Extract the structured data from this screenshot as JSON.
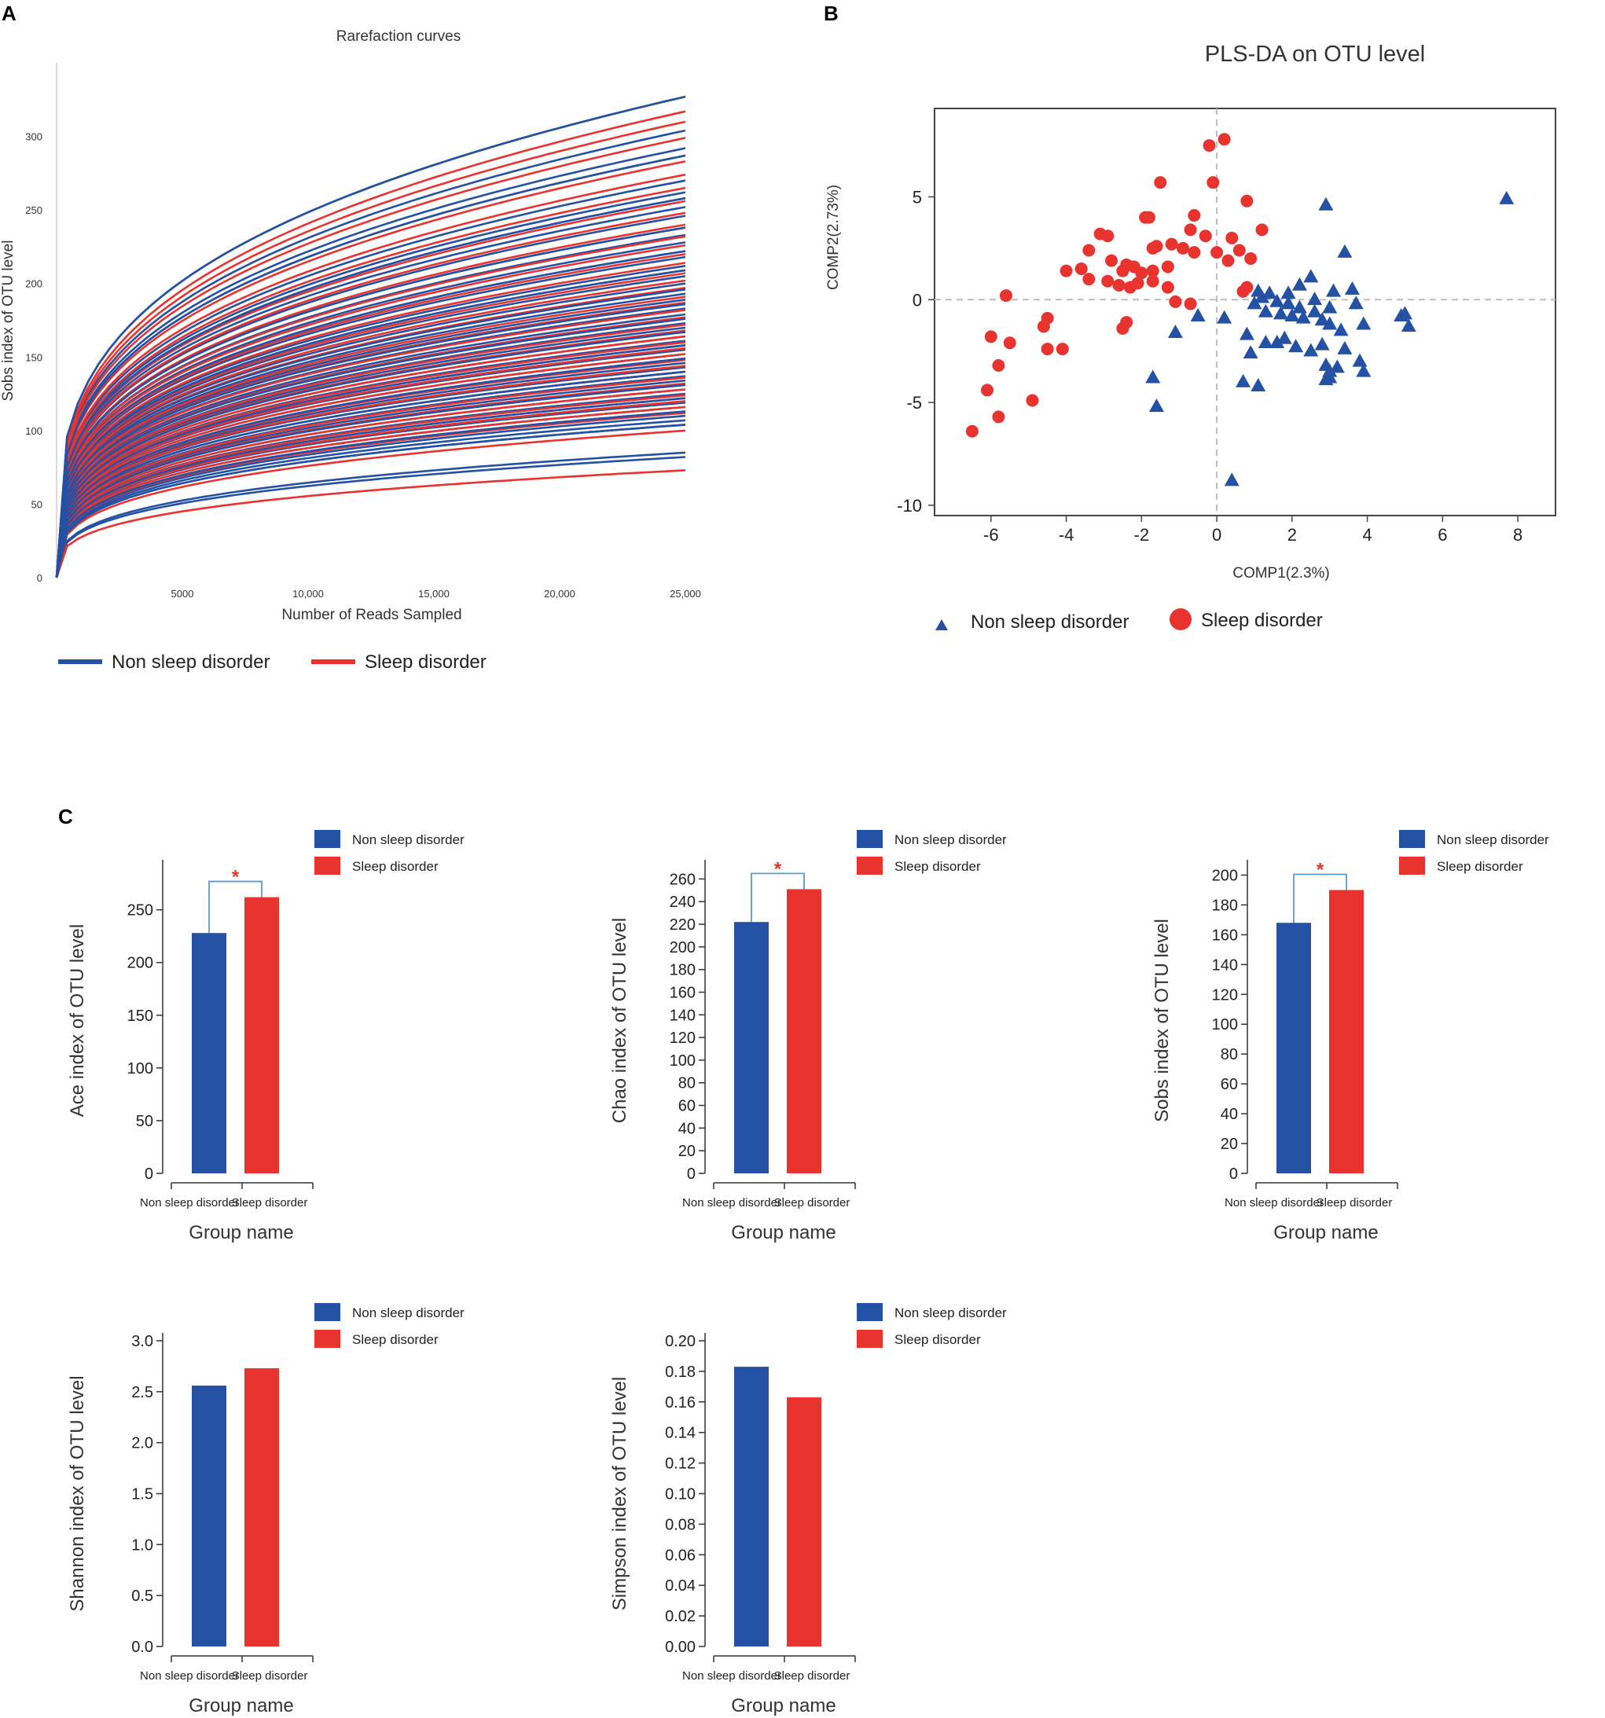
{
  "panel_labels": {
    "a": "A",
    "b": "B",
    "c": "C"
  },
  "colors": {
    "non_sleep": "#2451a3",
    "sleep": "#e8332e",
    "bracket": "#5a9bd5",
    "star": "#e8342f"
  },
  "chart_data": [
    {
      "id": "A",
      "type": "line",
      "title": "Rarefaction curves",
      "xlabel": "Number of Reads Sampled",
      "ylabel": "Sobs index of OTU level",
      "xlim": [
        0,
        25000
      ],
      "ylim": [
        0,
        350
      ],
      "xtick_labels": [
        "5000",
        "10,000",
        "15,000",
        "20,000",
        "25,000"
      ],
      "xtick_values": [
        5000,
        10000,
        15000,
        20000,
        25000
      ],
      "ytick_labels": [
        "0",
        "50",
        "100",
        "150",
        "200",
        "250",
        "300"
      ],
      "ytick_values": [
        0,
        50,
        100,
        150,
        200,
        250,
        300
      ],
      "curve_model": "y = final * (x/25000)^0.3",
      "series": [
        {
          "name": "Non sleep disorder",
          "color": "#2451a3",
          "final_values": [
            327,
            304,
            292,
            287,
            270,
            262,
            258,
            252,
            246,
            238,
            233,
            228,
            222,
            218,
            212,
            209,
            205,
            200,
            196,
            193,
            189,
            186,
            183,
            179,
            176,
            173,
            170,
            167,
            164,
            161,
            158,
            155,
            152,
            149,
            146,
            143,
            140,
            137,
            134,
            131,
            128,
            125,
            122,
            119,
            116,
            113,
            110,
            107,
            104,
            85,
            82
          ]
        },
        {
          "name": "Sleep disorder",
          "color": "#e8332e",
          "final_values": [
            317,
            310,
            299,
            283,
            274,
            265,
            256,
            248,
            240,
            232,
            226,
            220,
            214,
            207,
            202,
            197,
            191,
            187,
            182,
            177,
            172,
            168,
            164,
            160,
            156,
            152,
            148,
            144,
            140,
            136,
            132,
            128,
            124,
            120,
            116,
            112,
            100,
            73
          ]
        }
      ],
      "legend": [
        "Non sleep disorder",
        "Sleep disorder"
      ]
    },
    {
      "id": "B",
      "type": "scatter",
      "title": "PLS-DA on OTU level",
      "xlabel": "COMP1(2.3%)",
      "ylabel": "COMP2(2.73%)",
      "xlim": [
        -7.5,
        9.0
      ],
      "ylim": [
        -10.5,
        9.3
      ],
      "xtick_values": [
        -6,
        -4,
        -2,
        0,
        2,
        4,
        6,
        8
      ],
      "xtick_labels": [
        "-6",
        "-4",
        "-2",
        "0",
        "2",
        "4",
        "6",
        "8"
      ],
      "ytick_values": [
        -10,
        -5,
        0,
        5
      ],
      "ytick_labels": [
        "-10",
        "-5",
        "0",
        "5"
      ],
      "reference_lines": {
        "x": 0,
        "y": 0
      },
      "series": [
        {
          "name": "Non sleep disorder",
          "marker": "triangle",
          "color": "#2451a3",
          "points": [
            [
              7.7,
              4.9
            ],
            [
              2.9,
              4.6
            ],
            [
              3.4,
              2.3
            ],
            [
              2.5,
              1.1
            ],
            [
              3.6,
              0.5
            ],
            [
              3.1,
              0.4
            ],
            [
              2.2,
              0.7
            ],
            [
              1.4,
              0.3
            ],
            [
              1.9,
              0.3
            ],
            [
              1.1,
              0.4
            ],
            [
              1.2,
              0.1
            ],
            [
              1.6,
              -0.1
            ],
            [
              1.9,
              -0.2
            ],
            [
              2.2,
              -0.4
            ],
            [
              2.6,
              0.0
            ],
            [
              3.0,
              -0.4
            ],
            [
              3.7,
              -0.2
            ],
            [
              1.0,
              -0.2
            ],
            [
              1.3,
              -0.6
            ],
            [
              1.7,
              -0.7
            ],
            [
              2.0,
              -0.8
            ],
            [
              2.3,
              -0.9
            ],
            [
              2.6,
              -0.6
            ],
            [
              2.8,
              -1.0
            ],
            [
              3.0,
              -1.2
            ],
            [
              3.3,
              -1.5
            ],
            [
              3.9,
              -1.2
            ],
            [
              4.9,
              -0.8
            ],
            [
              5.0,
              -0.7
            ],
            [
              5.1,
              -1.3
            ],
            [
              0.2,
              -0.9
            ],
            [
              -0.5,
              -0.8
            ],
            [
              -1.1,
              -1.6
            ],
            [
              0.8,
              -1.7
            ],
            [
              1.3,
              -2.1
            ],
            [
              1.6,
              -2.1
            ],
            [
              1.8,
              -1.9
            ],
            [
              2.1,
              -2.3
            ],
            [
              2.5,
              -2.5
            ],
            [
              2.8,
              -2.2
            ],
            [
              3.4,
              -2.4
            ],
            [
              3.8,
              -3.0
            ],
            [
              2.9,
              -3.2
            ],
            [
              3.0,
              -3.5
            ],
            [
              3.2,
              -3.3
            ],
            [
              2.9,
              -3.9
            ],
            [
              3.0,
              -3.8
            ],
            [
              3.9,
              -3.5
            ],
            [
              0.9,
              -2.6
            ],
            [
              0.7,
              -4.0
            ],
            [
              1.1,
              -4.2
            ],
            [
              -1.7,
              -3.8
            ],
            [
              -1.6,
              -5.2
            ],
            [
              0.4,
              -8.8
            ]
          ]
        },
        {
          "name": "Sleep disorder",
          "marker": "circle",
          "color": "#e8332e",
          "points": [
            [
              0.2,
              7.8
            ],
            [
              -0.2,
              7.5
            ],
            [
              -0.1,
              5.7
            ],
            [
              -1.5,
              5.7
            ],
            [
              0.8,
              4.8
            ],
            [
              -0.6,
              4.1
            ],
            [
              -1.8,
              4.0
            ],
            [
              -1.9,
              4.0
            ],
            [
              -2.9,
              3.1
            ],
            [
              -3.1,
              3.2
            ],
            [
              -0.7,
              3.4
            ],
            [
              -0.3,
              3.1
            ],
            [
              0.4,
              3.0
            ],
            [
              1.2,
              3.4
            ],
            [
              -1.6,
              2.6
            ],
            [
              -1.7,
              2.5
            ],
            [
              -1.2,
              2.7
            ],
            [
              -0.9,
              2.5
            ],
            [
              -0.6,
              2.3
            ],
            [
              -3.4,
              2.4
            ],
            [
              -2.8,
              1.9
            ],
            [
              -2.4,
              1.7
            ],
            [
              -2.2,
              1.6
            ],
            [
              -2.5,
              1.4
            ],
            [
              -2.0,
              1.3
            ],
            [
              -1.7,
              1.4
            ],
            [
              -1.3,
              1.6
            ],
            [
              0.0,
              2.3
            ],
            [
              0.3,
              1.9
            ],
            [
              0.6,
              2.4
            ],
            [
              0.9,
              2.0
            ],
            [
              -4.0,
              1.4
            ],
            [
              -3.6,
              1.5
            ],
            [
              -3.4,
              1.0
            ],
            [
              -2.9,
              0.9
            ],
            [
              -2.6,
              0.7
            ],
            [
              -2.3,
              0.6
            ],
            [
              -2.1,
              0.8
            ],
            [
              -1.7,
              0.9
            ],
            [
              -1.3,
              0.6
            ],
            [
              0.8,
              0.6
            ],
            [
              0.7,
              0.4
            ],
            [
              -1.1,
              -0.1
            ],
            [
              -0.7,
              -0.2
            ],
            [
              -5.6,
              0.2
            ],
            [
              -4.5,
              -0.9
            ],
            [
              -4.6,
              -1.3
            ],
            [
              -2.4,
              -1.1
            ],
            [
              -2.5,
              -1.4
            ],
            [
              -6.0,
              -1.8
            ],
            [
              -5.5,
              -2.1
            ],
            [
              -4.5,
              -2.4
            ],
            [
              -4.1,
              -2.4
            ],
            [
              -5.8,
              -3.2
            ],
            [
              -6.1,
              -4.4
            ],
            [
              -4.9,
              -4.9
            ],
            [
              -5.8,
              -5.7
            ],
            [
              -6.5,
              -6.4
            ]
          ]
        }
      ],
      "legend": [
        "Non sleep disorder",
        "Sleep disorder"
      ]
    },
    {
      "id": "C1",
      "type": "bar",
      "ylabel": "Ace index of OTU level",
      "xlabel": "Group name",
      "categories": [
        "Non sleep disorder",
        "Sleep disorder"
      ],
      "values": [
        228,
        262
      ],
      "ylim": [
        0,
        290
      ],
      "ytick_values": [
        0,
        50,
        100,
        150,
        200,
        250
      ],
      "ytick_labels": [
        "0",
        "50",
        "100",
        "150",
        "200",
        "250"
      ],
      "significance": "*",
      "legend": [
        "Non sleep disorder",
        "Sleep disorder"
      ]
    },
    {
      "id": "C2",
      "type": "bar",
      "ylabel": "Chao index of OTU level",
      "xlabel": "Group name",
      "categories": [
        "Non sleep disorder",
        "Sleep disorder"
      ],
      "values": [
        222,
        251
      ],
      "ylim": [
        0,
        270
      ],
      "ytick_values": [
        0,
        20,
        40,
        60,
        80,
        100,
        120,
        140,
        160,
        180,
        200,
        220,
        240,
        260
      ],
      "ytick_labels": [
        "0",
        "20",
        "40",
        "60",
        "80",
        "100",
        "120",
        "140",
        "160",
        "180",
        "200",
        "220",
        "240",
        "260"
      ],
      "significance": "*",
      "legend": [
        "Non sleep disorder",
        "Sleep disorder"
      ]
    },
    {
      "id": "C3",
      "type": "bar",
      "ylabel": "Sobs index of OTU level",
      "xlabel": "Group name",
      "categories": [
        "Non sleep disorder",
        "Sleep disorder"
      ],
      "values": [
        168,
        190
      ],
      "ylim": [
        0,
        205
      ],
      "ytick_values": [
        0,
        20,
        40,
        60,
        80,
        100,
        120,
        140,
        160,
        180,
        200
      ],
      "ytick_labels": [
        "0",
        "20",
        "40",
        "60",
        "80",
        "100",
        "120",
        "140",
        "160",
        "180",
        "200"
      ],
      "significance": "*",
      "legend": [
        "Non sleep disorder",
        "Sleep disorder"
      ]
    },
    {
      "id": "C4",
      "type": "bar",
      "ylabel": "Shannon index of OTU level",
      "xlabel": "Group name",
      "categories": [
        "Non sleep disorder",
        "Sleep disorder"
      ],
      "values": [
        2.56,
        2.73
      ],
      "ylim": [
        0,
        3.0
      ],
      "ytick_values": [
        0.0,
        0.5,
        1.0,
        1.5,
        2.0,
        2.5,
        3.0
      ],
      "ytick_labels": [
        "0.0",
        "0.5",
        "1.0",
        "1.5",
        "2.0",
        "2.5",
        "3.0"
      ],
      "significance": "",
      "legend": [
        "Non sleep disorder",
        "Sleep disorder"
      ]
    },
    {
      "id": "C5",
      "type": "bar",
      "ylabel": "Simpson index of OTU level",
      "xlabel": "Group name",
      "categories": [
        "Non sleep disorder",
        "Sleep disorder"
      ],
      "values": [
        0.183,
        0.163
      ],
      "ylim": [
        0,
        0.2
      ],
      "ytick_values": [
        0.0,
        0.02,
        0.04,
        0.06,
        0.08,
        0.1,
        0.12,
        0.14,
        0.16,
        0.18,
        0.2
      ],
      "ytick_labels": [
        "0.00",
        "0.02",
        "0.04",
        "0.06",
        "0.08",
        "0.10",
        "0.12",
        "0.14",
        "0.16",
        "0.18",
        "0.20"
      ],
      "significance": "",
      "legend": [
        "Non sleep disorder",
        "Sleep disorder"
      ]
    }
  ]
}
